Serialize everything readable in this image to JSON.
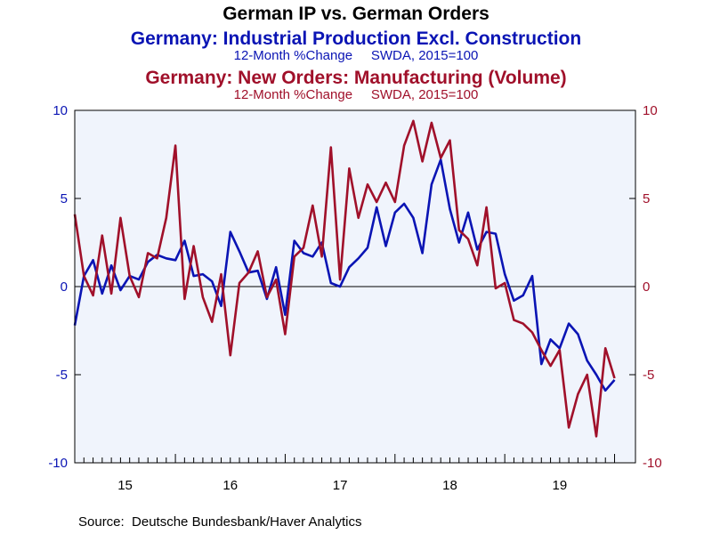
{
  "chart_data": {
    "type": "line",
    "title": "German IP vs. German Orders",
    "series": [
      {
        "name": "Germany: Industrial Production Excl. Construction",
        "subtitle": "12-Month %Change     SWDA, 2015=100",
        "axis": "left",
        "color": "#0a14b4",
        "values": [
          -2.2,
          0.6,
          1.5,
          -0.4,
          1.2,
          -0.2,
          0.6,
          0.4,
          1.4,
          1.8,
          1.6,
          1.5,
          2.6,
          0.6,
          0.7,
          0.3,
          -1.1,
          3.1,
          2.0,
          0.8,
          0.9,
          -0.7,
          1.1,
          -1.6,
          2.6,
          1.9,
          1.7,
          2.5,
          0.2,
          0.0,
          1.1,
          1.6,
          2.2,
          4.5,
          2.3,
          4.2,
          4.7,
          3.9,
          1.9,
          5.8,
          7.2,
          4.4,
          2.5,
          4.2,
          2.1,
          3.1,
          3.0,
          0.7,
          -0.8,
          -0.5,
          0.6,
          -4.4,
          -3.0,
          -3.5,
          -2.1,
          -2.7,
          -4.2,
          -5.0,
          -5.9,
          -5.3
        ]
      },
      {
        "name": "Germany: New Orders: Manufacturing (Volume)",
        "subtitle": "12-Month %Change     SWDA, 2015=100",
        "axis": "right",
        "color": "#a0102a",
        "values": [
          4.1,
          0.6,
          -0.5,
          2.9,
          -0.4,
          3.9,
          0.6,
          -0.6,
          1.9,
          1.6,
          3.9,
          8.0,
          -0.7,
          2.3,
          -0.6,
          -2.0,
          0.7,
          -3.9,
          0.2,
          0.8,
          2.0,
          -0.6,
          0.4,
          -2.7,
          1.7,
          2.2,
          4.6,
          1.7,
          7.9,
          0.4,
          6.7,
          3.9,
          5.8,
          4.8,
          5.9,
          4.8,
          8.0,
          9.4,
          7.1,
          9.3,
          7.3,
          8.3,
          3.2,
          2.7,
          1.2,
          4.5,
          -0.1,
          0.2,
          -1.9,
          -2.1,
          -2.6,
          -3.6,
          -4.5,
          -3.6,
          -8.0,
          -6.1,
          -5.0,
          -8.5,
          -3.5,
          -5.2
        ]
      }
    ],
    "x_ticks": [
      "15",
      "16",
      "17",
      "18",
      "19"
    ],
    "y_left_ticks": [
      "10",
      "5",
      "0",
      "-5",
      "-10"
    ],
    "y_right_ticks": [
      "10",
      "5",
      "0",
      "-5",
      "-10"
    ],
    "ylim": [
      -10,
      10
    ],
    "grid": false,
    "zero_line": true,
    "plot_background": "#f0f4fc",
    "source": "Source:  Deutsche Bundesbank/Haver Analytics"
  }
}
